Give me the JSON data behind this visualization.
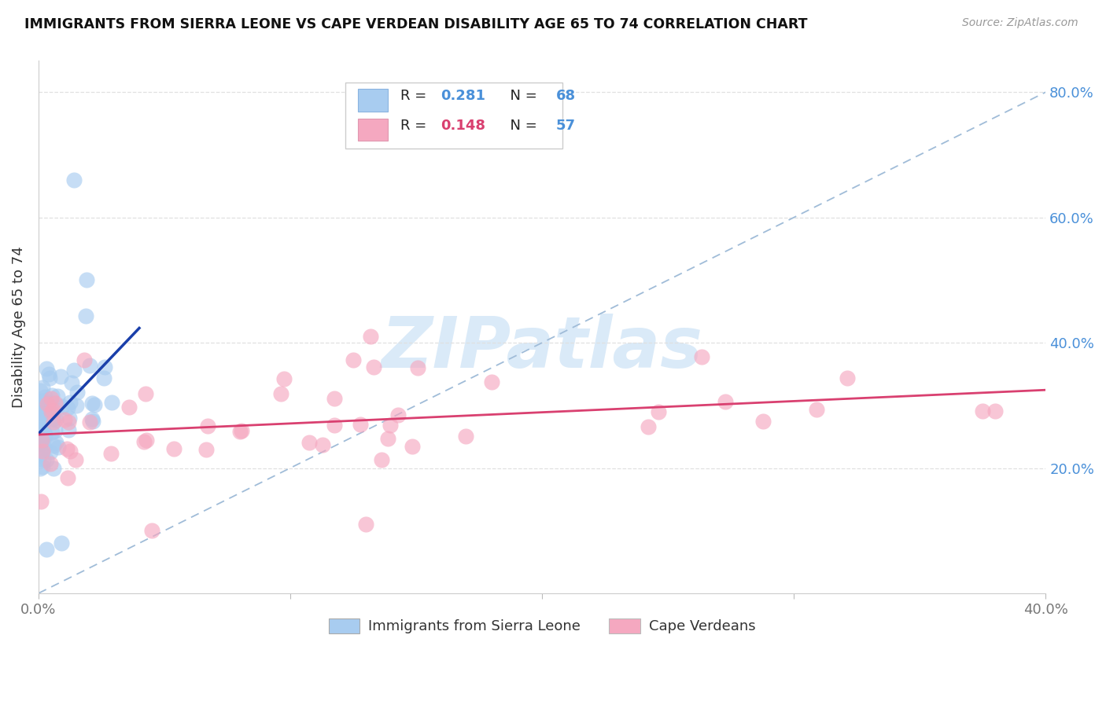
{
  "title": "IMMIGRANTS FROM SIERRA LEONE VS CAPE VERDEAN DISABILITY AGE 65 TO 74 CORRELATION CHART",
  "source": "Source: ZipAtlas.com",
  "ylabel": "Disability Age 65 to 74",
  "xlim": [
    0.0,
    0.4
  ],
  "ylim": [
    0.0,
    0.85
  ],
  "xtick_vals": [
    0.0,
    0.1,
    0.2,
    0.3,
    0.4
  ],
  "xtick_labels": [
    "0.0%",
    "",
    "",
    "",
    "40.0%"
  ],
  "ytick_vals": [
    0.2,
    0.4,
    0.6,
    0.8
  ],
  "ytick_labels": [
    "20.0%",
    "40.0%",
    "60.0%",
    "80.0%"
  ],
  "legend1_R": "0.281",
  "legend1_N": "68",
  "legend2_R": "0.148",
  "legend2_N": "57",
  "legend1_label": "Immigrants from Sierra Leone",
  "legend2_label": "Cape Verdeans",
  "sl_color": "#a8ccf0",
  "cv_color": "#f5a8c0",
  "sl_line_color": "#1a3faa",
  "cv_line_color": "#d94070",
  "diag_color": "#a0bcd8",
  "r_color_sl": "#4a90d9",
  "r_color_cv": "#d94070",
  "n_color": "#4a90d9",
  "watermark_color": "#daeaf8",
  "title_color": "#111111",
  "source_color": "#999999",
  "ylabel_color": "#333333",
  "tick_color": "#777777",
  "grid_color": "#e0e0e0"
}
